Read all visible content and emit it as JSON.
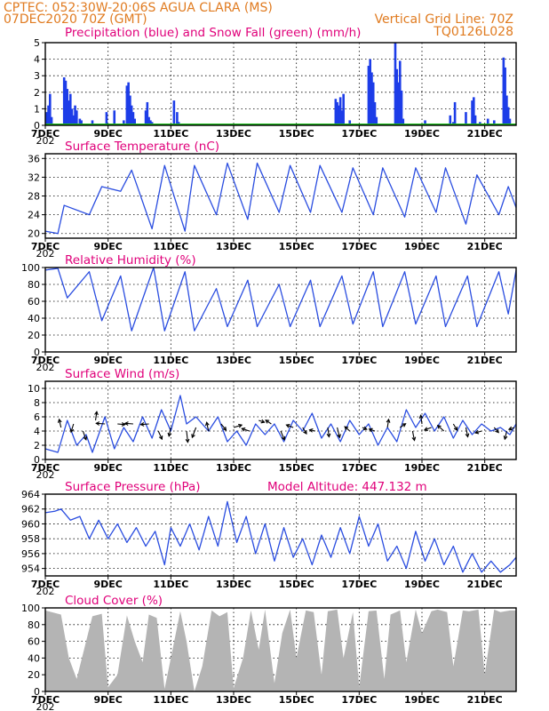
{
  "header": {
    "line1": "CPTEC:   052:30W-20:06S   AGUA CLARA (MS)",
    "line2": "07DEC2020 70Z (GMT)",
    "grid_note": "Vertical Grid Line: 70Z",
    "code": "TQ0126L028"
  },
  "x_axis": {
    "start_day": 7,
    "end_day": 22,
    "ticks": [
      {
        "day": 7,
        "label": "7DEC"
      },
      {
        "day": 9,
        "label": "9DEC"
      },
      {
        "day": 11,
        "label": "11DEC"
      },
      {
        "day": 13,
        "label": "13DEC"
      },
      {
        "day": 15,
        "label": "15DEC"
      },
      {
        "day": 17,
        "label": "17DEC"
      },
      {
        "day": 19,
        "label": "19DEC"
      },
      {
        "day": 21,
        "label": "21DEC"
      }
    ],
    "sub_label": "202"
  },
  "colors": {
    "precip": "#1d3de8",
    "snow": "#1dbb1d",
    "line": "#2a4de0",
    "cloud": "#b4b4b4",
    "title": "#e0007a",
    "header": "#e07b20",
    "grid": "#000000"
  },
  "chart_data": [
    {
      "type": "bar",
      "title": "Precipitation (blue) and Snow Fall (green) (mm/h)",
      "ylim": [
        0,
        5
      ],
      "yticks": [
        0,
        1,
        2,
        3,
        4,
        5
      ],
      "grid": true,
      "x": [
        7.05,
        7.1,
        7.15,
        7.2,
        7.6,
        7.65,
        7.7,
        7.75,
        7.8,
        7.85,
        7.9,
        7.95,
        8.0,
        8.1,
        8.15,
        8.5,
        8.95,
        9.2,
        9.5,
        9.6,
        9.65,
        9.7,
        9.75,
        9.8,
        9.85,
        10.2,
        10.25,
        10.3,
        10.35,
        10.4,
        11.1,
        11.2,
        11.25,
        16.25,
        16.3,
        16.35,
        16.4,
        16.45,
        16.5,
        16.7,
        17.3,
        17.35,
        17.4,
        17.45,
        17.5,
        17.55,
        18.15,
        18.2,
        18.25,
        18.3,
        18.35,
        18.4,
        19.1,
        19.9,
        20.0,
        20.05,
        20.4,
        20.6,
        20.65,
        20.7,
        20.85,
        21.1,
        21.3,
        21.6,
        21.65,
        21.7,
        21.75,
        21.8
      ],
      "values": [
        0.8,
        1.2,
        1.9,
        0.5,
        2.9,
        2.7,
        2.2,
        1.5,
        1.9,
        1.0,
        0.6,
        1.2,
        0.9,
        0.4,
        0.3,
        0.3,
        0.8,
        0.9,
        0.3,
        2.4,
        2.6,
        1.8,
        1.2,
        0.8,
        0.4,
        0.9,
        1.4,
        0.5,
        0.3,
        0.2,
        1.5,
        0.8,
        0.2,
        1.6,
        1.4,
        1.2,
        1.7,
        0.9,
        1.9,
        0.3,
        3.6,
        4.0,
        3.2,
        2.6,
        1.4,
        0.5,
        5.0,
        3.4,
        2.6,
        3.9,
        2.1,
        0.4,
        0.3,
        0.6,
        0.2,
        1.4,
        0.8,
        1.5,
        1.7,
        0.6,
        0.2,
        0.4,
        0.3,
        4.1,
        3.5,
        1.8,
        1.1,
        0.4
      ],
      "snow_values": []
    },
    {
      "type": "line",
      "title": "Surface Temperature (nC)",
      "ylim": [
        19,
        37
      ],
      "yticks": [
        20,
        24,
        28,
        32,
        36
      ],
      "grid": true,
      "x": [
        7.0,
        7.4,
        7.6,
        8.4,
        8.8,
        9.4,
        9.75,
        10.4,
        10.8,
        11.45,
        11.75,
        12.45,
        12.8,
        13.45,
        13.75,
        14.45,
        14.8,
        15.45,
        15.75,
        16.45,
        16.8,
        17.45,
        17.75,
        18.45,
        18.8,
        19.45,
        19.75,
        20.4,
        20.75,
        21.45,
        21.75,
        22.0
      ],
      "values": [
        20.5,
        20,
        26,
        24,
        30,
        29,
        33.5,
        21,
        34.5,
        20.5,
        34.5,
        24,
        35,
        23,
        35,
        24.5,
        34.5,
        24.5,
        34.5,
        24.5,
        34,
        24,
        34,
        23.5,
        34,
        24.5,
        34,
        22,
        32.5,
        24,
        30,
        25.5
      ]
    },
    {
      "type": "line",
      "title": "Relative Humidity (%)",
      "ylim": [
        0,
        100
      ],
      "yticks": [
        0,
        20,
        40,
        60,
        80,
        100
      ],
      "grid": true,
      "x": [
        7.0,
        7.4,
        7.7,
        8.4,
        8.8,
        9.4,
        9.75,
        10.45,
        10.8,
        11.45,
        11.75,
        12.45,
        12.8,
        13.45,
        13.75,
        14.45,
        14.8,
        15.45,
        15.75,
        16.45,
        16.8,
        17.45,
        17.75,
        18.45,
        18.8,
        19.45,
        19.75,
        20.45,
        20.75,
        21.45,
        21.75,
        22.0
      ],
      "values": [
        97,
        99,
        64,
        95,
        37,
        90,
        25,
        100,
        25,
        95,
        25,
        75,
        30,
        85,
        30,
        80,
        30,
        85,
        30,
        90,
        33,
        95,
        30,
        95,
        33,
        90,
        30,
        90,
        30,
        95,
        45,
        97
      ]
    },
    {
      "type": "line",
      "title": "Surface Wind (m/s)",
      "ylim": [
        0,
        11
      ],
      "yticks": [
        0,
        2,
        4,
        6,
        8,
        10
      ],
      "grid": true,
      "x": [
        7.0,
        7.4,
        7.7,
        8.0,
        8.3,
        8.5,
        8.9,
        9.2,
        9.5,
        9.8,
        10.1,
        10.4,
        10.7,
        11.0,
        11.3,
        11.5,
        11.8,
        12.2,
        12.5,
        12.8,
        13.1,
        13.4,
        13.7,
        14.0,
        14.3,
        14.6,
        14.9,
        15.2,
        15.5,
        15.8,
        16.1,
        16.4,
        16.7,
        17.0,
        17.3,
        17.6,
        17.9,
        18.2,
        18.5,
        18.8,
        19.1,
        19.4,
        19.7,
        20.0,
        20.3,
        20.6,
        20.9,
        21.2,
        21.5,
        21.8,
        22.0
      ],
      "values": [
        1.5,
        1,
        5.5,
        2,
        3.5,
        1,
        6,
        1.5,
        4.5,
        2.5,
        6,
        3,
        7,
        4,
        9,
        5,
        6,
        4,
        6,
        2.5,
        4,
        2,
        5,
        3.5,
        5,
        2.5,
        5.5,
        4,
        6.5,
        3,
        5,
        2.5,
        5.5,
        3.5,
        5,
        2,
        4.5,
        2.5,
        7,
        4.5,
        6.5,
        4,
        6,
        3,
        5.5,
        3.5,
        5,
        4,
        4.5,
        3.5,
        5
      ],
      "arrows": [
        {
          "x": 7.5,
          "y": 4.5,
          "u": -0.3,
          "v": 1.3
        },
        {
          "x": 7.9,
          "y": 5,
          "u": -0.4,
          "v": -1.3
        },
        {
          "x": 8.2,
          "y": 4,
          "u": 0.5,
          "v": -1.4
        },
        {
          "x": 8.6,
          "y": 5.5,
          "u": 0.2,
          "v": 1.4
        },
        {
          "x": 8.9,
          "y": 5,
          "u": -1.4,
          "v": 0.1
        },
        {
          "x": 9.3,
          "y": 5,
          "u": 1.2,
          "v": -0.1
        },
        {
          "x": 9.8,
          "y": 5,
          "u": -1.3,
          "v": 0.1
        },
        {
          "x": 10.3,
          "y": 5,
          "u": -1.3,
          "v": -0.1
        },
        {
          "x": 10.6,
          "y": 4,
          "u": 0.6,
          "v": -1.3
        },
        {
          "x": 11.0,
          "y": 4.5,
          "u": -0.3,
          "v": -1.4
        },
        {
          "x": 11.5,
          "y": 4,
          "u": 0.2,
          "v": -1.8
        },
        {
          "x": 11.8,
          "y": 4.5,
          "u": -0.6,
          "v": -1.6
        },
        {
          "x": 12.2,
          "y": 4,
          "u": -0.3,
          "v": 1.4
        },
        {
          "x": 12.6,
          "y": 5,
          "u": 0.8,
          "v": -1
        },
        {
          "x": 13.0,
          "y": 4.5,
          "u": 1.3,
          "v": 0.4
        },
        {
          "x": 13.5,
          "y": 4,
          "u": -1.2,
          "v": 0.4
        },
        {
          "x": 13.8,
          "y": 5.5,
          "u": 0.9,
          "v": -0.3
        },
        {
          "x": 14.2,
          "y": 5,
          "u": -0.9,
          "v": 0.6
        },
        {
          "x": 14.5,
          "y": 4,
          "u": 0.6,
          "v": -1.4
        },
        {
          "x": 14.9,
          "y": 4.5,
          "u": -1.1,
          "v": 0.4
        },
        {
          "x": 15.2,
          "y": 4.5,
          "u": 0.6,
          "v": -1
        },
        {
          "x": 15.6,
          "y": 4,
          "u": -0.9,
          "v": 0.2
        },
        {
          "x": 16.0,
          "y": 4.5,
          "u": 0.2,
          "v": -1.5
        },
        {
          "x": 16.3,
          "y": 4.5,
          "u": 0.4,
          "v": -1.6
        },
        {
          "x": 16.7,
          "y": 4,
          "u": -0.8,
          "v": 0.7
        },
        {
          "x": 17.1,
          "y": 4.5,
          "u": 0.7,
          "v": -0.3
        },
        {
          "x": 17.5,
          "y": 4,
          "u": -0.9,
          "v": 0.3
        },
        {
          "x": 17.9,
          "y": 4.5,
          "u": 0.2,
          "v": 1.3
        },
        {
          "x": 18.3,
          "y": 4.5,
          "u": 0.9,
          "v": 0.6
        },
        {
          "x": 18.7,
          "y": 4,
          "u": 0.3,
          "v": -1.5
        },
        {
          "x": 19.0,
          "y": 5,
          "u": -0.2,
          "v": 1.4
        },
        {
          "x": 19.3,
          "y": 4.5,
          "u": -1.1,
          "v": -0.4
        },
        {
          "x": 19.7,
          "y": 4,
          "u": -1,
          "v": 0.9
        },
        {
          "x": 20.0,
          "y": 5,
          "u": 0.6,
          "v": -1
        },
        {
          "x": 20.4,
          "y": 4.5,
          "u": 0.3,
          "v": -1.5
        },
        {
          "x": 20.9,
          "y": 4,
          "u": -1,
          "v": -0.3
        },
        {
          "x": 21.3,
          "y": 4.5,
          "u": 0.7,
          "v": -0.8
        },
        {
          "x": 21.7,
          "y": 4,
          "u": -0.3,
          "v": -1.3
        },
        {
          "x": 21.95,
          "y": 4.5,
          "u": -0.9,
          "v": -0.3
        }
      ]
    },
    {
      "type": "line",
      "title": "Surface Pressure (hPa)",
      "annotation": "Model Altitude: 447.132 m",
      "ylim": [
        953,
        964
      ],
      "yticks": [
        954,
        956,
        958,
        960,
        962,
        964
      ],
      "grid": true,
      "x": [
        7.0,
        7.3,
        7.5,
        7.8,
        8.1,
        8.4,
        8.7,
        9.0,
        9.3,
        9.6,
        9.9,
        10.2,
        10.5,
        10.8,
        11.0,
        11.3,
        11.6,
        11.9,
        12.2,
        12.5,
        12.8,
        13.1,
        13.4,
        13.7,
        14.0,
        14.3,
        14.6,
        14.9,
        15.2,
        15.5,
        15.8,
        16.1,
        16.4,
        16.7,
        17.0,
        17.3,
        17.6,
        17.9,
        18.2,
        18.5,
        18.8,
        19.1,
        19.4,
        19.7,
        20.0,
        20.3,
        20.6,
        20.9,
        21.2,
        21.5,
        21.8,
        22.0
      ],
      "values": [
        961.5,
        961.7,
        962,
        960.5,
        961,
        958,
        960.5,
        958,
        960,
        957.5,
        959.5,
        957,
        959,
        954.5,
        959.5,
        957,
        960,
        956.5,
        961,
        957,
        963,
        957.5,
        961,
        956,
        960,
        955,
        959.5,
        955.5,
        958,
        954.5,
        958.5,
        955.5,
        959.5,
        956,
        961,
        957,
        960,
        955,
        957,
        954,
        959,
        955,
        958,
        954.5,
        957,
        953.5,
        956,
        953.5,
        955,
        953.5,
        954.5,
        955.5
      ]
    },
    {
      "type": "bar",
      "title": "Cloud Cover (%)",
      "ylim": [
        0,
        100
      ],
      "yticks": [
        0,
        20,
        40,
        60,
        80,
        100
      ],
      "grid": true,
      "x": [
        7.0,
        7.5,
        7.75,
        8.0,
        8.5,
        8.8,
        9.0,
        9.3,
        9.6,
        9.85,
        10.1,
        10.3,
        10.55,
        10.8,
        11.0,
        11.3,
        11.5,
        11.75,
        12.0,
        12.3,
        12.55,
        12.8,
        13.0,
        13.3,
        13.55,
        13.8,
        14.0,
        14.3,
        14.55,
        14.8,
        15.0,
        15.3,
        15.55,
        15.8,
        16.0,
        16.3,
        16.5,
        16.8,
        17.0,
        17.3,
        17.55,
        17.8,
        18.0,
        18.3,
        18.5,
        18.8,
        19.0,
        19.3,
        19.5,
        19.8,
        20.0,
        20.3,
        20.5,
        20.8,
        21.0,
        21.3,
        21.5,
        21.8,
        22.0
      ],
      "values": [
        97,
        92,
        40,
        15,
        90,
        93,
        5,
        20,
        91,
        60,
        35,
        92,
        88,
        3,
        40,
        96,
        60,
        0,
        30,
        97,
        90,
        95,
        4,
        40,
        97,
        50,
        98,
        10,
        70,
        98,
        40,
        97,
        95,
        20,
        96,
        98,
        40,
        95,
        5,
        96,
        97,
        15,
        92,
        97,
        35,
        98,
        70,
        96,
        98,
        95,
        30,
        97,
        96,
        98,
        20,
        98,
        95,
        97,
        97
      ]
    }
  ]
}
